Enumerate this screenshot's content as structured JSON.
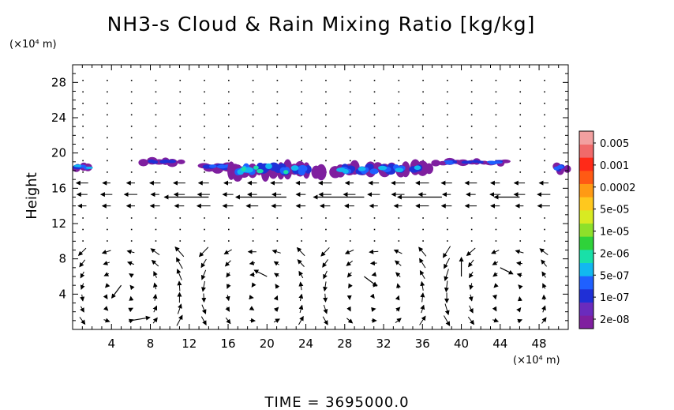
{
  "chart_data": {
    "type": "heatmap",
    "title": "NH3-s Cloud & Rain Mixing Ratio [kg/kg]",
    "ylabel": "Height",
    "xunit": "(×10⁴ m)",
    "yunit": "(×10⁴ m)",
    "footer": "TIME = 3695000.0",
    "xlim": [
      0,
      51
    ],
    "ylim": [
      0,
      30
    ],
    "xticks": [
      4,
      8,
      12,
      16,
      20,
      24,
      28,
      32,
      36,
      40,
      44,
      48
    ],
    "yticks": [
      4,
      8,
      12,
      16,
      20,
      24,
      28
    ],
    "colorbar": {
      "labels": [
        "0.005",
        "0.001",
        "0.0002",
        "5e-05",
        "1e-05",
        "2e-06",
        "5e-07",
        "1e-07",
        "2e-08"
      ],
      "colors": [
        "#7f1f9f",
        "#6a2bbd",
        "#1f2fd6",
        "#1f60ff",
        "#12b8f0",
        "#19e0a8",
        "#2fd23a",
        "#8ee02a",
        "#d8ea22",
        "#ffc81e",
        "#ff9a14",
        "#ff5a14",
        "#ff2a18",
        "#f06a6a",
        "#f2a0a0"
      ]
    },
    "cloud_patches": [
      {
        "x": [
          0,
          2
        ],
        "y": [
          18.0,
          18.9
        ],
        "level": 3
      },
      {
        "x": [
          7,
          11.5
        ],
        "y": [
          18.6,
          19.4
        ],
        "level": 1
      },
      {
        "x": [
          13,
          17
        ],
        "y": [
          18.0,
          19.0
        ],
        "level": 2
      },
      {
        "x": [
          16,
          26
        ],
        "y": [
          17.2,
          19.2
        ],
        "level": 4
      },
      {
        "x": [
          26.5,
          37
        ],
        "y": [
          17.4,
          19.0
        ],
        "level": 3
      },
      {
        "x": [
          37,
          45
        ],
        "y": [
          18.6,
          19.3
        ],
        "level": 2
      },
      {
        "x": [
          49.5,
          51
        ],
        "y": [
          17.8,
          18.9
        ],
        "level": 2
      }
    ],
    "wind_vectors": [
      {
        "x": 14,
        "y": 15,
        "u": -7,
        "v": 0
      },
      {
        "x": 22,
        "y": 15,
        "u": -8,
        "v": 0
      },
      {
        "x": 30,
        "y": 15,
        "u": -8,
        "v": 0
      },
      {
        "x": 38,
        "y": 15,
        "u": -7,
        "v": 0
      },
      {
        "x": 46,
        "y": 15,
        "u": -4,
        "v": 0
      },
      {
        "x": 6,
        "y": 1,
        "u": 3,
        "v": 0.5
      },
      {
        "x": 5,
        "y": 5,
        "u": -1.5,
        "v": -2
      },
      {
        "x": 20,
        "y": 6,
        "u": -2,
        "v": 1
      },
      {
        "x": 30,
        "y": 6,
        "u": 2,
        "v": -1.5
      },
      {
        "x": 40,
        "y": 6,
        "u": 0,
        "v": 3
      },
      {
        "x": 44,
        "y": 7,
        "u": 2,
        "v": -1
      }
    ]
  }
}
